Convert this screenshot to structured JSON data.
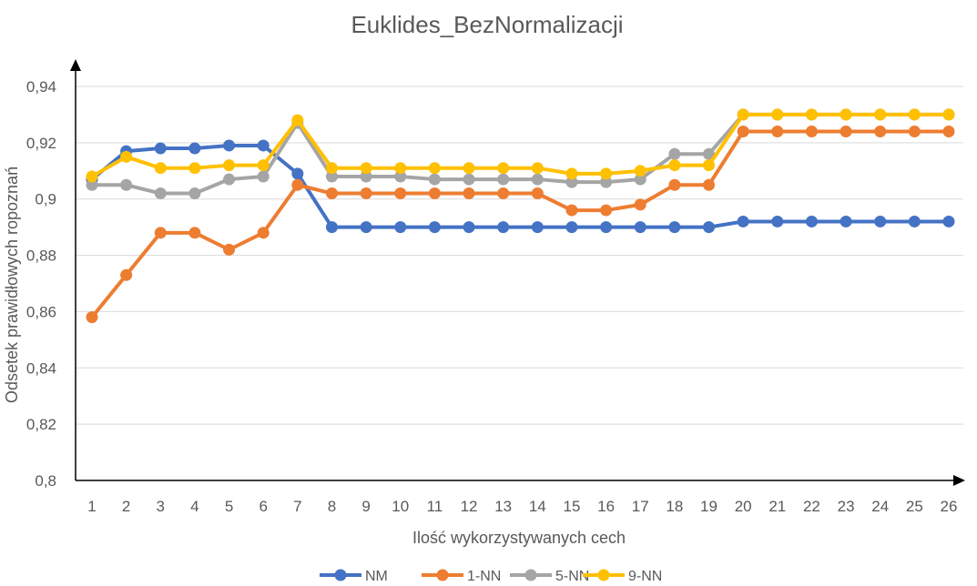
{
  "chart_data": {
    "type": "line",
    "title": "Euklides_BezNormalizacji",
    "xlabel": "Ilość wykorzystywanych cech",
    "ylabel": "Odsetek prawidłowych ropoznań",
    "x": [
      "1",
      "2",
      "3",
      "4",
      "5",
      "6",
      "7",
      "8",
      "9",
      "10",
      "11",
      "12",
      "13",
      "14",
      "15",
      "16",
      "17",
      "18",
      "19",
      "20",
      "21",
      "22",
      "23",
      "24",
      "25",
      "26"
    ],
    "ylim": [
      0.8,
      0.94
    ],
    "yticks": [
      0.8,
      0.82,
      0.84,
      0.86,
      0.88,
      0.9,
      0.92,
      0.94
    ],
    "ytick_labels": [
      "0,8",
      "0,82",
      "0,84",
      "0,86",
      "0,88",
      "0,9",
      "0,92",
      "0,94"
    ],
    "grid": true,
    "legend_position": "bottom",
    "series": [
      {
        "name": "NM",
        "color": "#4472C4",
        "values": [
          0.907,
          0.917,
          0.918,
          0.918,
          0.919,
          0.919,
          0.909,
          0.89,
          0.89,
          0.89,
          0.89,
          0.89,
          0.89,
          0.89,
          0.89,
          0.89,
          0.89,
          0.89,
          0.89,
          0.892,
          0.892,
          0.892,
          0.892,
          0.892,
          0.892,
          0.892
        ]
      },
      {
        "name": "1-NN",
        "color": "#ED7D31",
        "values": [
          0.858,
          0.873,
          0.888,
          0.888,
          0.882,
          0.888,
          0.905,
          0.902,
          0.902,
          0.902,
          0.902,
          0.902,
          0.902,
          0.902,
          0.896,
          0.896,
          0.898,
          0.905,
          0.905,
          0.924,
          0.924,
          0.924,
          0.924,
          0.924,
          0.924,
          0.924
        ]
      },
      {
        "name": "5-NN",
        "color": "#A5A5A5",
        "values": [
          0.905,
          0.905,
          0.902,
          0.902,
          0.907,
          0.908,
          0.927,
          0.908,
          0.908,
          0.908,
          0.907,
          0.907,
          0.907,
          0.907,
          0.906,
          0.906,
          0.907,
          0.916,
          0.916,
          0.93,
          0.93,
          0.93,
          0.93,
          0.93,
          0.93,
          0.93
        ]
      },
      {
        "name": "9-NN",
        "color": "#FFC000",
        "values": [
          0.908,
          0.915,
          0.911,
          0.911,
          0.912,
          0.912,
          0.928,
          0.911,
          0.911,
          0.911,
          0.911,
          0.911,
          0.911,
          0.911,
          0.909,
          0.909,
          0.91,
          0.912,
          0.912,
          0.93,
          0.93,
          0.93,
          0.93,
          0.93,
          0.93,
          0.93
        ]
      }
    ]
  }
}
